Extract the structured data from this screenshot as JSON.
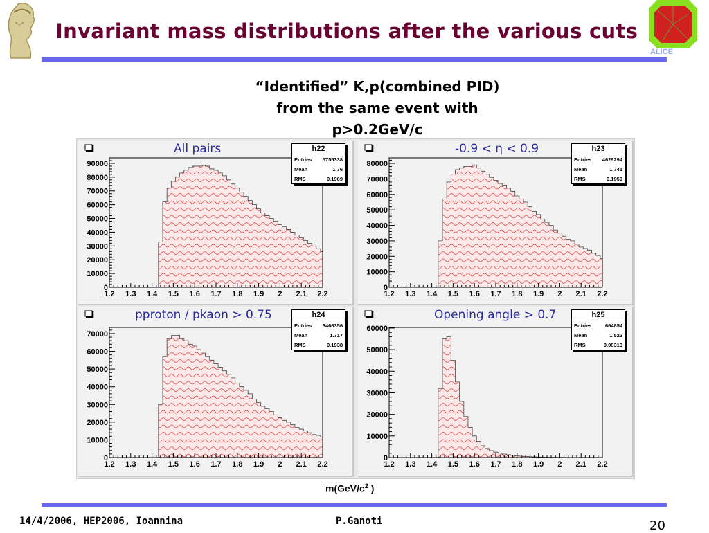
{
  "slide": {
    "title": "Invariant mass distributions after the various cuts",
    "subtitle_lines": [
      "“Identified” K,p(combined PID)",
      "from the same event with",
      "p>0.2GeV/c"
    ],
    "xaxis_label_main": "m(GeV/c",
    "xaxis_label_sup": "2",
    "xaxis_label_end": " )",
    "footer_left": "14/4/2006, HEP2006, Ioannina",
    "footer_center": "P.Ganoti",
    "page_number": "20",
    "logo_right_text": "ALICE",
    "colors": {
      "title": "#6b0033",
      "rule": "#6a6ae8",
      "hist_fill": "#e04040",
      "pad_title": "#2a2aa0"
    }
  },
  "chart_data": [
    {
      "type": "bar",
      "name": "h22",
      "title": "All pairs",
      "stats": {
        "Entries": "5755338",
        "Mean": "1.76",
        "RMS": "0.1969"
      },
      "xlim": [
        1.2,
        2.2
      ],
      "ylim": [
        0,
        94000
      ],
      "xticks": [
        "1.2",
        "1.3",
        "1.4",
        "1.5",
        "1.6",
        "1.7",
        "1.8",
        "1.9",
        "2",
        "2.1",
        "2.2"
      ],
      "yticks": [
        "0",
        "10000",
        "20000",
        "30000",
        "40000",
        "50000",
        "60000",
        "70000",
        "80000",
        "90000"
      ],
      "bin_start": 1.43,
      "bin_width": 0.02,
      "values": [
        33000,
        62000,
        72000,
        77000,
        80000,
        83000,
        85000,
        87000,
        88000,
        88000,
        88500,
        88000,
        86000,
        85000,
        83000,
        81000,
        78000,
        75000,
        72000,
        69000,
        66000,
        63000,
        60000,
        57000,
        54000,
        52000,
        50000,
        48000,
        45500,
        44000,
        42000,
        40000,
        38000,
        36000,
        34000,
        32000,
        30000,
        28000,
        26000
      ]
    },
    {
      "type": "bar",
      "name": "h23",
      "title": "-0.9 < η < 0.9",
      "stats": {
        "Entries": "4629294",
        "Mean": "1.741",
        "RMS": "0.1959"
      },
      "xlim": [
        1.2,
        2.2
      ],
      "ylim": [
        0,
        83600
      ],
      "xticks": [
        "1.2",
        "1.3",
        "1.4",
        "1.5",
        "1.6",
        "1.7",
        "1.8",
        "1.9",
        "2",
        "2.1",
        "2.2"
      ],
      "yticks": [
        "0",
        "10000",
        "20000",
        "30000",
        "40000",
        "50000",
        "60000",
        "70000",
        "80000"
      ],
      "bin_start": 1.43,
      "bin_width": 0.02,
      "values": [
        30000,
        57000,
        68000,
        73000,
        76000,
        77000,
        78000,
        78000,
        79000,
        77000,
        75000,
        73000,
        71000,
        69000,
        67000,
        66000,
        64000,
        62000,
        59000,
        57000,
        55000,
        52000,
        49000,
        47000,
        44000,
        42000,
        40000,
        37000,
        35000,
        33000,
        31000,
        30000,
        28000,
        26000,
        25000,
        24000,
        22000,
        20500,
        18500
      ]
    },
    {
      "type": "bar",
      "name": "h24",
      "title": "pproton / pkaon > 0.75",
      "stats": {
        "Entries": "3466356",
        "Mean": "1.717",
        "RMS": "0.1938"
      },
      "xlim": [
        1.2,
        2.2
      ],
      "ylim": [
        0,
        73500
      ],
      "xticks": [
        "1.2",
        "1.3",
        "1.4",
        "1.5",
        "1.6",
        "1.7",
        "1.8",
        "1.9",
        "2",
        "2.1",
        "2.2"
      ],
      "yticks": [
        "0",
        "10000",
        "20000",
        "30000",
        "40000",
        "50000",
        "60000",
        "70000"
      ],
      "bin_start": 1.43,
      "bin_width": 0.02,
      "values": [
        30000,
        57000,
        67000,
        69000,
        69000,
        67000,
        66000,
        64000,
        63000,
        61000,
        59000,
        57000,
        55000,
        53000,
        51000,
        49000,
        47000,
        45000,
        42000,
        40000,
        38000,
        36000,
        33000,
        31000,
        29000,
        27500,
        26000,
        24000,
        22500,
        21000,
        20000,
        18500,
        17000,
        16000,
        15000,
        14000,
        13000,
        12500,
        11500
      ]
    },
    {
      "type": "bar",
      "name": "h25",
      "title": "Opening angle > 0.7",
      "stats": {
        "Entries": "664854",
        "Mean": "1.522",
        "RMS": "0.08313"
      },
      "xlim": [
        1.2,
        2.2
      ],
      "ylim": [
        0,
        60300
      ],
      "xticks": [
        "1.2",
        "1.3",
        "1.4",
        "1.5",
        "1.6",
        "1.7",
        "1.8",
        "1.9",
        "2",
        "2.1",
        "2.2"
      ],
      "yticks": [
        "0",
        "10000",
        "20000",
        "30000",
        "40000",
        "50000",
        "60000"
      ],
      "bin_start": 1.43,
      "bin_width": 0.02,
      "values": [
        32000,
        55000,
        56000,
        45000,
        35000,
        26000,
        19000,
        14000,
        10000,
        7500,
        5500,
        4200,
        3200,
        2500,
        2000,
        1600,
        1300,
        1000,
        800,
        650,
        500,
        400,
        300,
        250,
        200,
        150,
        120,
        100,
        80,
        60,
        50,
        40,
        30,
        20,
        15,
        10,
        8,
        5,
        3
      ]
    }
  ]
}
